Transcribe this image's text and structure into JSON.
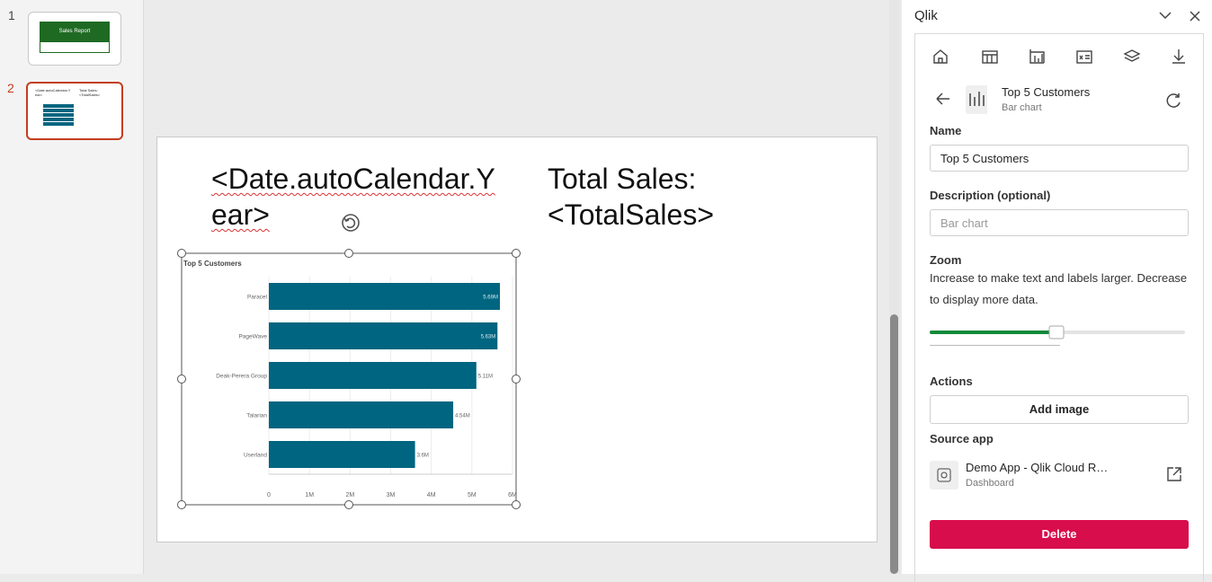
{
  "thumbnails": [
    {
      "number": 1,
      "title": "Sales Report"
    },
    {
      "number": 2
    }
  ],
  "slide": {
    "heading": "<Date.autoCalendar.Year>",
    "total": "Total Sales: <TotalSales>"
  },
  "chart_data": {
    "type": "bar",
    "orientation": "horizontal",
    "title": "Top 5 Customers",
    "categories": [
      "Paracel",
      "PageWave",
      "Deak-Perera Group",
      "Talarian",
      "Userland"
    ],
    "values": [
      5690000,
      5630000,
      5110000,
      4540000,
      3600000
    ],
    "value_labels": [
      "5.69M",
      "5.63M",
      "5.11M",
      "4.54M",
      "3.6M"
    ],
    "color": "#006580",
    "xlim": [
      0,
      6000000
    ],
    "xticks": [
      0,
      {
        "value": 1000000,
        "label": "1M"
      },
      {
        "value": 2000000,
        "label": "2M"
      },
      {
        "value": 3000000,
        "label": "3M"
      },
      {
        "value": 4000000,
        "label": "4M"
      },
      {
        "value": 5000000,
        "label": "5M"
      },
      {
        "value": 6000000,
        "label": "6M"
      }
    ],
    "grid": true
  },
  "panel": {
    "app": "Qlik",
    "object_title": "Top 5 Customers",
    "object_type": "Bar chart",
    "name_label": "Name",
    "name_value": "Top 5 Customers",
    "description_label": "Description (optional)",
    "description_placeholder": "Bar chart",
    "zoom_label": "Zoom",
    "zoom_help": "Increase to make text and labels larger. Decrease to display more data.",
    "actions_label": "Actions",
    "add_image": "Add image",
    "source_label": "Source app",
    "source_name": "Demo App - Qlik Cloud R…",
    "source_type": "Dashboard",
    "delete": "Delete"
  }
}
